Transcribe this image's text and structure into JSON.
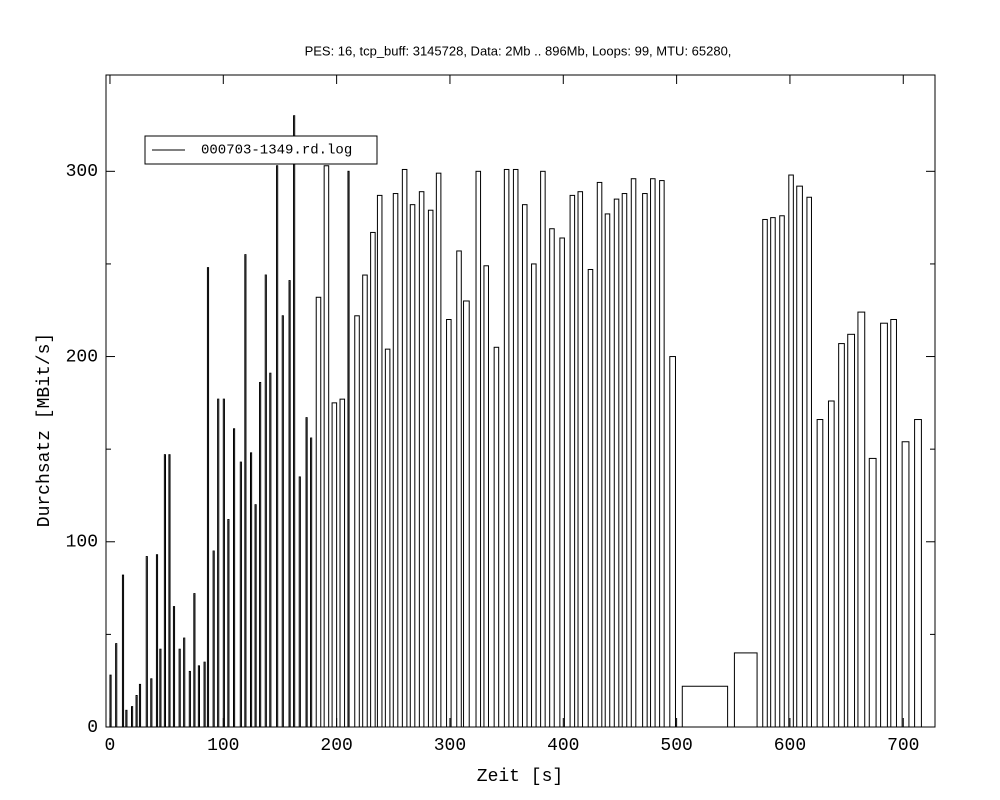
{
  "chart_data": {
    "type": "bar",
    "title": "PES: 16, tcp_buff: 3145728, Data: 2Mb .. 896Mb, Loops: 99, MTU: 65280,",
    "x_label": "Zeit [s]",
    "y_label": "Durchsatz [MBit/s]",
    "xlim": [
      -3.5,
      728
    ],
    "ylim": [
      0,
      352
    ],
    "xticks": [
      0,
      100,
      200,
      300,
      400,
      500,
      600,
      700
    ],
    "yticks": [
      0,
      100,
      200,
      300
    ],
    "yminorticks": [
      50,
      150,
      250
    ],
    "legend": "top-left",
    "series": [
      {
        "name": "000703-1349.rd.log",
        "color": "#000000",
        "x": [
          0,
          5,
          11,
          14,
          19,
          23,
          26,
          32,
          36,
          41,
          44,
          48,
          52,
          56,
          61,
          65,
          70,
          74,
          78,
          83,
          86,
          91,
          95,
          100,
          104,
          109,
          115,
          119,
          124,
          128,
          132,
          137,
          141,
          147,
          152,
          158,
          162,
          167,
          173,
          177,
          182,
          189,
          196,
          203,
          210,
          216,
          223,
          230,
          236,
          243,
          250,
          258,
          265,
          273,
          281,
          288,
          297,
          306,
          312,
          323,
          330,
          339,
          348,
          356,
          364,
          372,
          380,
          388,
          397,
          406,
          413,
          422,
          430,
          437,
          445,
          452,
          460,
          470,
          477,
          485,
          494,
          505,
          551,
          576,
          583,
          591,
          599,
          606,
          615,
          624,
          634,
          643,
          651,
          660,
          670,
          680,
          689,
          699,
          710
        ],
        "x_end": [
          1,
          6,
          12,
          15,
          20,
          24,
          27,
          33,
          37,
          42,
          45,
          49,
          53,
          57,
          62,
          66,
          71,
          75,
          79,
          84,
          87,
          92,
          96,
          101,
          105,
          110,
          116,
          120,
          125,
          129,
          133,
          138,
          142,
          148,
          153,
          159,
          163,
          168,
          174,
          178,
          186,
          193,
          200,
          207,
          211,
          220,
          227,
          234,
          240,
          247,
          254,
          262,
          269,
          277,
          285,
          292,
          301,
          310,
          317,
          327,
          334,
          343,
          352,
          360,
          368,
          376,
          384,
          392,
          401,
          410,
          417,
          426,
          434,
          441,
          449,
          456,
          464,
          474,
          481,
          489,
          499,
          545,
          571,
          580,
          587,
          595,
          603,
          611,
          619,
          629,
          639,
          648,
          657,
          666,
          676,
          686,
          694,
          705,
          716
        ],
        "values": [
          28,
          45,
          82,
          9,
          11,
          17,
          23,
          92,
          26,
          93,
          42,
          147,
          147,
          65,
          42,
          48,
          30,
          72,
          33,
          35,
          248,
          95,
          177,
          177,
          112,
          161,
          143,
          255,
          148,
          120,
          186,
          244,
          191,
          303,
          222,
          241,
          330,
          135,
          167,
          156,
          232,
          303,
          175,
          177,
          300,
          222,
          244,
          267,
          287,
          204,
          288,
          301,
          282,
          289,
          279,
          299,
          220,
          257,
          230,
          300,
          249,
          205,
          301,
          301,
          282,
          250,
          300,
          269,
          264,
          287,
          289,
          247,
          294,
          277,
          285,
          288,
          296,
          288,
          296,
          295,
          200,
          22,
          40,
          274,
          275,
          276,
          298,
          292,
          286,
          166,
          176,
          207,
          212,
          224,
          145,
          218,
          220,
          154,
          166
        ]
      }
    ]
  }
}
